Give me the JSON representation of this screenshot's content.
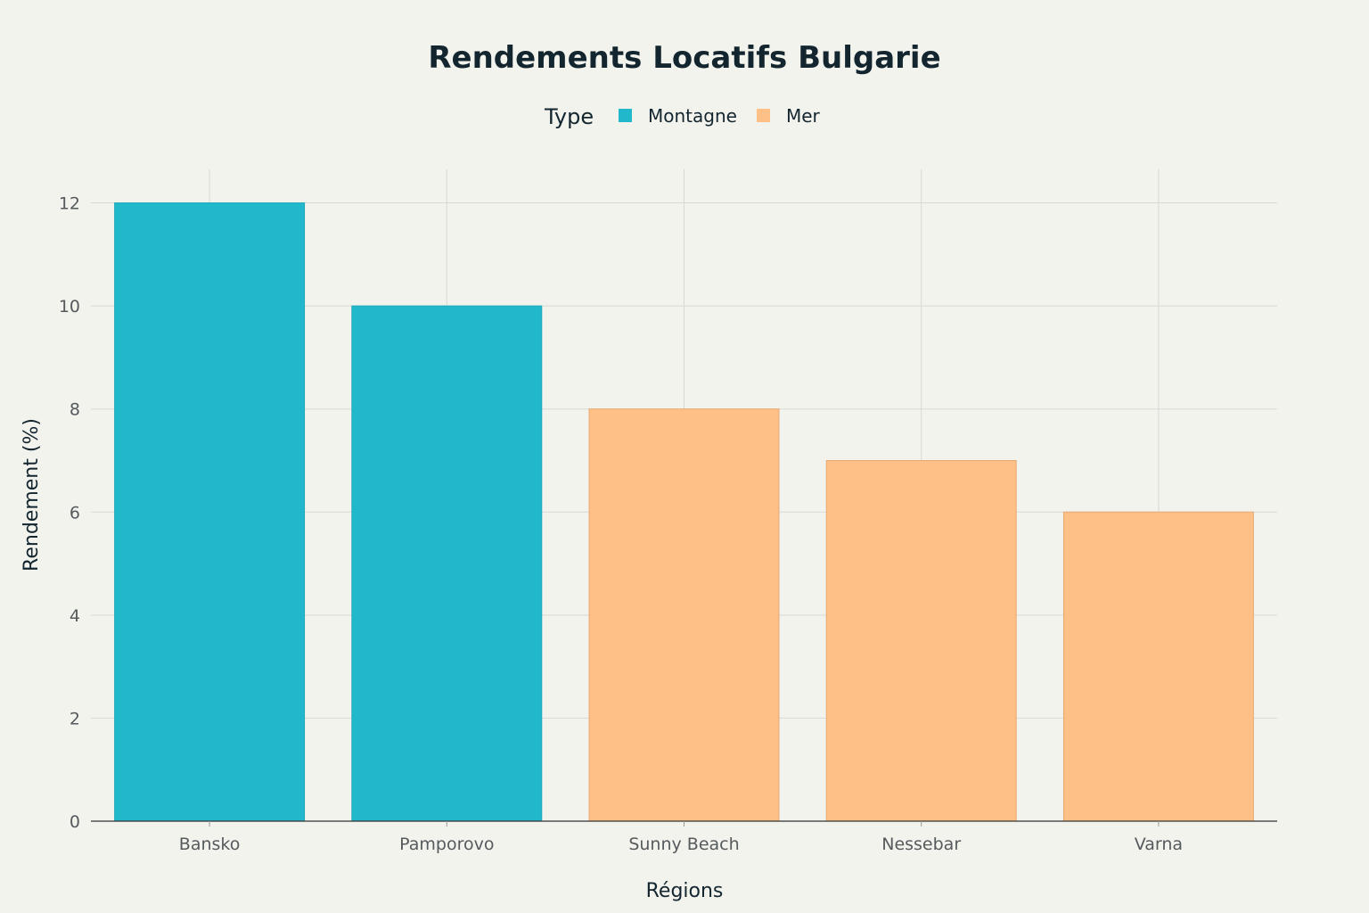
{
  "chart_data": {
    "type": "bar",
    "title": "Rendements Locatifs Bulgarie",
    "xlabel": "Régions",
    "ylabel": "Rendement (%)",
    "categories": [
      "Bansko",
      "Pamporovo",
      "Sunny Beach",
      "Nessebar",
      "Varna"
    ],
    "values": [
      12,
      10,
      8,
      7,
      6
    ],
    "types": [
      "Montagne",
      "Montagne",
      "Mer",
      "Mer",
      "Mer"
    ],
    "ylim": [
      0,
      12.65
    ],
    "yticks": [
      0,
      2,
      4,
      6,
      8,
      10,
      12
    ],
    "grid": true,
    "legend": {
      "title": "Type",
      "placement": "top-center",
      "entries": [
        {
          "name": "Montagne",
          "color": "#21b8cc"
        },
        {
          "name": "Mer",
          "color": "#fec086"
        }
      ]
    }
  }
}
